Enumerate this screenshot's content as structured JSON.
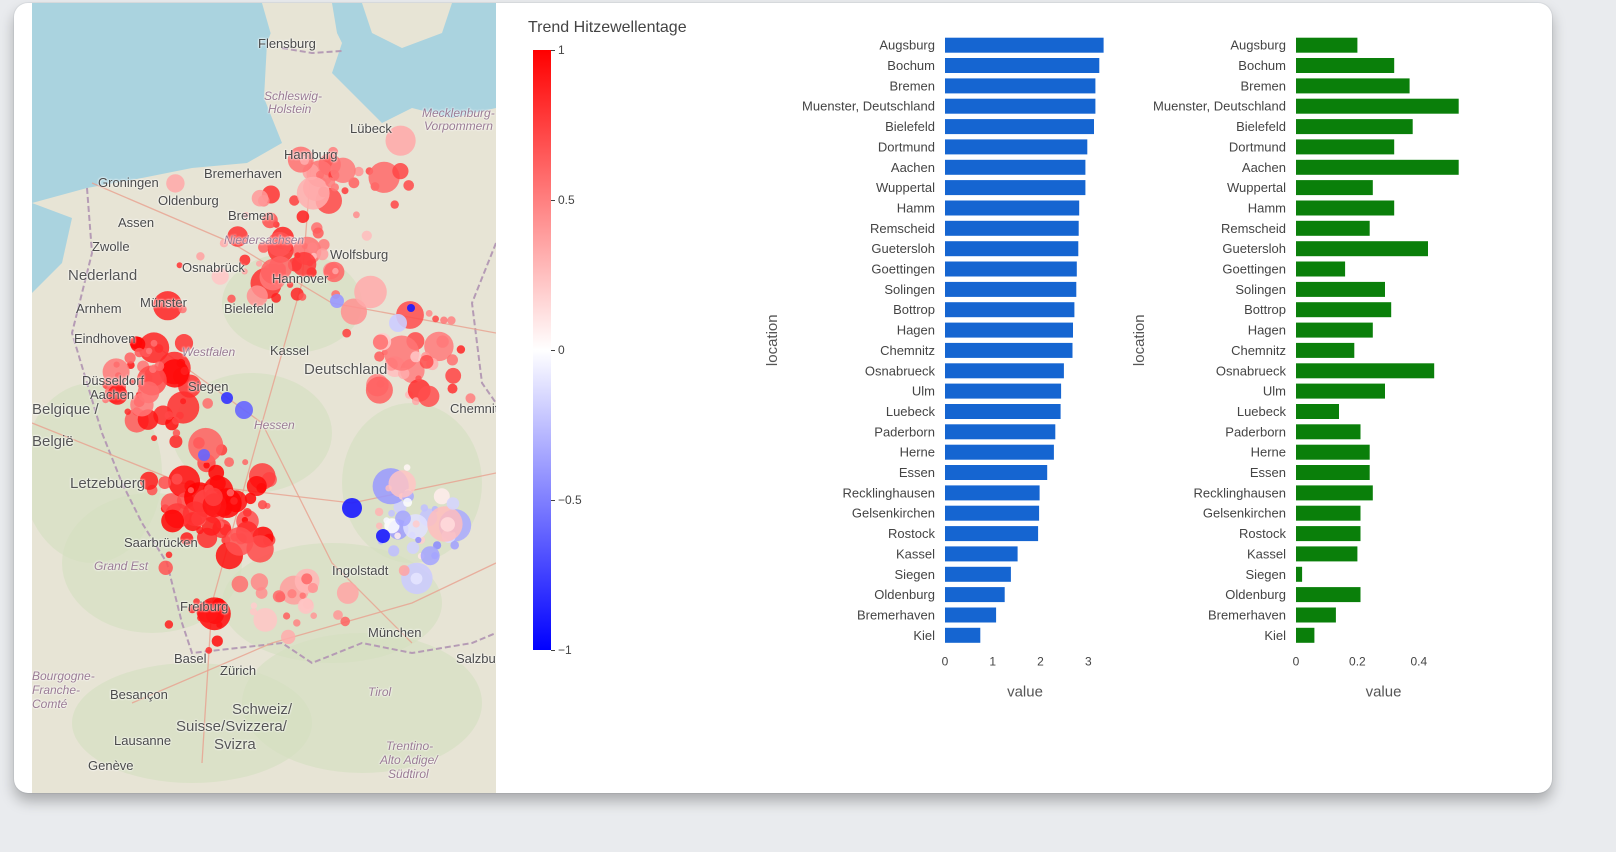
{
  "map": {
    "labels": [
      {
        "text": "Flensburg",
        "kind": "city"
      },
      {
        "text": "Schleswig-",
        "kind": "region"
      },
      {
        "text": "Holstein",
        "kind": "region"
      },
      {
        "text": "Lübeck",
        "kind": "city"
      },
      {
        "text": "Mecklenburg-",
        "kind": "region"
      },
      {
        "text": "Vorpommern",
        "kind": "region"
      },
      {
        "text": "Hamburg",
        "kind": "city"
      },
      {
        "text": "Bremerhaven",
        "kind": "city"
      },
      {
        "text": "Groningen",
        "kind": "city"
      },
      {
        "text": "Oldenburg",
        "kind": "city"
      },
      {
        "text": "Bremen",
        "kind": "city"
      },
      {
        "text": "Assen",
        "kind": "city"
      },
      {
        "text": "Zwolle",
        "kind": "city"
      },
      {
        "text": "Niedersachsen",
        "kind": "region"
      },
      {
        "text": "Wolfsburg",
        "kind": "city"
      },
      {
        "text": "Nederland",
        "kind": "country"
      },
      {
        "text": "Osnabrück",
        "kind": "city"
      },
      {
        "text": "Hannover",
        "kind": "city"
      },
      {
        "text": "Arnhem",
        "kind": "city"
      },
      {
        "text": "Münster",
        "kind": "city"
      },
      {
        "text": "Bielefeld",
        "kind": "city"
      },
      {
        "text": "Eindhoven",
        "kind": "city"
      },
      {
        "text": "Westfalen",
        "kind": "region"
      },
      {
        "text": "Kassel",
        "kind": "city"
      },
      {
        "text": "Deutschland",
        "kind": "country"
      },
      {
        "text": "Düsseldorf",
        "kind": "city"
      },
      {
        "text": "Aachen",
        "kind": "city"
      },
      {
        "text": "Siegen",
        "kind": "city"
      },
      {
        "text": "Hessen",
        "kind": "region"
      },
      {
        "text": "Chemnitz",
        "kind": "city"
      },
      {
        "text": "Belgique /",
        "kind": "country"
      },
      {
        "text": "België",
        "kind": "country"
      },
      {
        "text": "Letzebuerg",
        "kind": "country"
      },
      {
        "text": "Saarbrücken",
        "kind": "city"
      },
      {
        "text": "Grand Est",
        "kind": "region"
      },
      {
        "text": "Ingolstadt",
        "kind": "city"
      },
      {
        "text": "München",
        "kind": "city"
      },
      {
        "text": "Freiburg",
        "kind": "city"
      },
      {
        "text": "Basel",
        "kind": "city"
      },
      {
        "text": "Zürich",
        "kind": "city"
      },
      {
        "text": "Salzburg",
        "kind": "city"
      },
      {
        "text": "Bourgogne-",
        "kind": "region"
      },
      {
        "text": "Franche-",
        "kind": "region"
      },
      {
        "text": "Comté",
        "kind": "region"
      },
      {
        "text": "Besançon",
        "kind": "city"
      },
      {
        "text": "Schweiz/",
        "kind": "country"
      },
      {
        "text": "Suisse/Svizzera/",
        "kind": "country"
      },
      {
        "text": "Svizra",
        "kind": "country"
      },
      {
        "text": "Tirol",
        "kind": "region"
      },
      {
        "text": "Lausanne",
        "kind": "city"
      },
      {
        "text": "Trentino-",
        "kind": "region"
      },
      {
        "text": "Alto Adige/",
        "kind": "region"
      },
      {
        "text": "Südtirol",
        "kind": "region"
      },
      {
        "text": "Genève",
        "kind": "city"
      }
    ]
  },
  "colorbar": {
    "title": "Trend Hitzewellentage",
    "ticks": [
      "1",
      "0.5",
      "0",
      "−0.5",
      "−1"
    ],
    "colors": {
      "high": "#ff0000",
      "mid": "#ffffff",
      "low": "#0000ff"
    }
  },
  "chart_data": [
    {
      "type": "bar",
      "orientation": "horizontal",
      "color": "#1565d1",
      "xlabel": "value",
      "ylabel": "location",
      "xlim": [
        0,
        3.35
      ],
      "xticks": [
        0,
        1,
        2,
        3
      ],
      "categories": [
        "Augsburg",
        "Bochum",
        "Bremen",
        "Muenster, Deutschland",
        "Bielefeld",
        "Dortmund",
        "Aachen",
        "Wuppertal",
        "Hamm",
        "Remscheid",
        "Guetersloh",
        "Goettingen",
        "Solingen",
        "Bottrop",
        "Hagen",
        "Chemnitz",
        "Osnabrueck",
        "Ulm",
        "Luebeck",
        "Paderborn",
        "Herne",
        "Essen",
        "Recklinghausen",
        "Gelsenkirchen",
        "Rostock",
        "Kassel",
        "Siegen",
        "Oldenburg",
        "Bremerhaven",
        "Kiel"
      ],
      "values": [
        3.32,
        3.23,
        3.15,
        3.15,
        3.12,
        2.98,
        2.94,
        2.94,
        2.81,
        2.8,
        2.79,
        2.76,
        2.75,
        2.71,
        2.68,
        2.67,
        2.49,
        2.43,
        2.42,
        2.31,
        2.28,
        2.14,
        1.98,
        1.97,
        1.95,
        1.52,
        1.38,
        1.25,
        1.07,
        0.74
      ]
    },
    {
      "type": "bar",
      "orientation": "horizontal",
      "color": "#0a7f0a",
      "xlabel": "value",
      "ylabel": "location",
      "xlim": [
        0,
        0.57
      ],
      "xticks": [
        0,
        0.2,
        0.4
      ],
      "categories": [
        "Augsburg",
        "Bochum",
        "Bremen",
        "Muenster, Deutschland",
        "Bielefeld",
        "Dortmund",
        "Aachen",
        "Wuppertal",
        "Hamm",
        "Remscheid",
        "Guetersloh",
        "Goettingen",
        "Solingen",
        "Bottrop",
        "Hagen",
        "Chemnitz",
        "Osnabrueck",
        "Ulm",
        "Luebeck",
        "Paderborn",
        "Herne",
        "Essen",
        "Recklinghausen",
        "Gelsenkirchen",
        "Rostock",
        "Kassel",
        "Siegen",
        "Oldenburg",
        "Bremerhaven",
        "Kiel"
      ],
      "values": [
        0.2,
        0.32,
        0.37,
        0.53,
        0.38,
        0.32,
        0.53,
        0.25,
        0.32,
        0.24,
        0.43,
        0.16,
        0.29,
        0.31,
        0.25,
        0.19,
        0.45,
        0.29,
        0.14,
        0.21,
        0.24,
        0.24,
        0.25,
        0.21,
        0.21,
        0.2,
        0.02,
        0.21,
        0.13,
        0.06
      ]
    }
  ]
}
